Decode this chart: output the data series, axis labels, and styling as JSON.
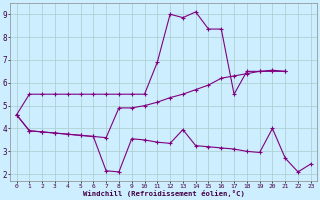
{
  "line1_x": [
    0,
    1,
    2,
    3,
    4,
    5,
    6,
    7,
    8,
    9,
    10,
    11,
    12,
    13,
    14,
    15,
    16,
    17,
    18,
    19,
    20,
    21
  ],
  "line1_y": [
    4.6,
    5.5,
    5.5,
    5.5,
    5.5,
    5.5,
    5.5,
    5.5,
    5.5,
    5.5,
    5.5,
    6.9,
    9.0,
    8.85,
    9.1,
    8.35,
    8.35,
    5.5,
    6.5,
    6.5,
    6.5,
    6.5
  ],
  "line2_x": [
    0,
    1,
    2,
    3,
    4,
    5,
    6,
    7,
    8,
    9,
    10,
    11,
    12,
    13,
    14,
    15,
    16,
    17,
    18,
    19,
    20,
    21
  ],
  "line2_y": [
    4.6,
    3.9,
    3.85,
    3.8,
    3.75,
    3.7,
    3.65,
    3.6,
    4.9,
    4.9,
    5.0,
    5.15,
    5.35,
    5.5,
    5.7,
    5.9,
    6.2,
    6.3,
    6.4,
    6.5,
    6.55,
    6.5
  ],
  "line3_x": [
    0,
    1,
    2,
    3,
    4,
    5,
    6,
    7,
    8,
    9,
    10,
    11,
    12,
    13,
    14,
    15,
    16,
    17,
    18,
    19,
    20,
    21,
    22,
    23
  ],
  "line3_y": [
    4.6,
    3.9,
    3.85,
    3.8,
    3.75,
    3.7,
    3.65,
    2.15,
    2.1,
    3.55,
    3.5,
    3.4,
    3.35,
    3.95,
    3.25,
    3.2,
    3.15,
    3.1,
    3.0,
    2.95,
    4.0,
    2.7,
    2.1,
    2.45
  ],
  "line_color": "#800080",
  "bg_color": "#cceeff",
  "grid_color": "#aacccc",
  "xlabel": "Windchill (Refroidissement éolien,°C)",
  "ylim": [
    1.7,
    9.5
  ],
  "xlim": [
    -0.5,
    23.5
  ],
  "yticks": [
    2,
    3,
    4,
    5,
    6,
    7,
    8,
    9
  ],
  "xticks": [
    0,
    1,
    2,
    3,
    4,
    5,
    6,
    7,
    8,
    9,
    10,
    11,
    12,
    13,
    14,
    15,
    16,
    17,
    18,
    19,
    20,
    21,
    22,
    23
  ]
}
